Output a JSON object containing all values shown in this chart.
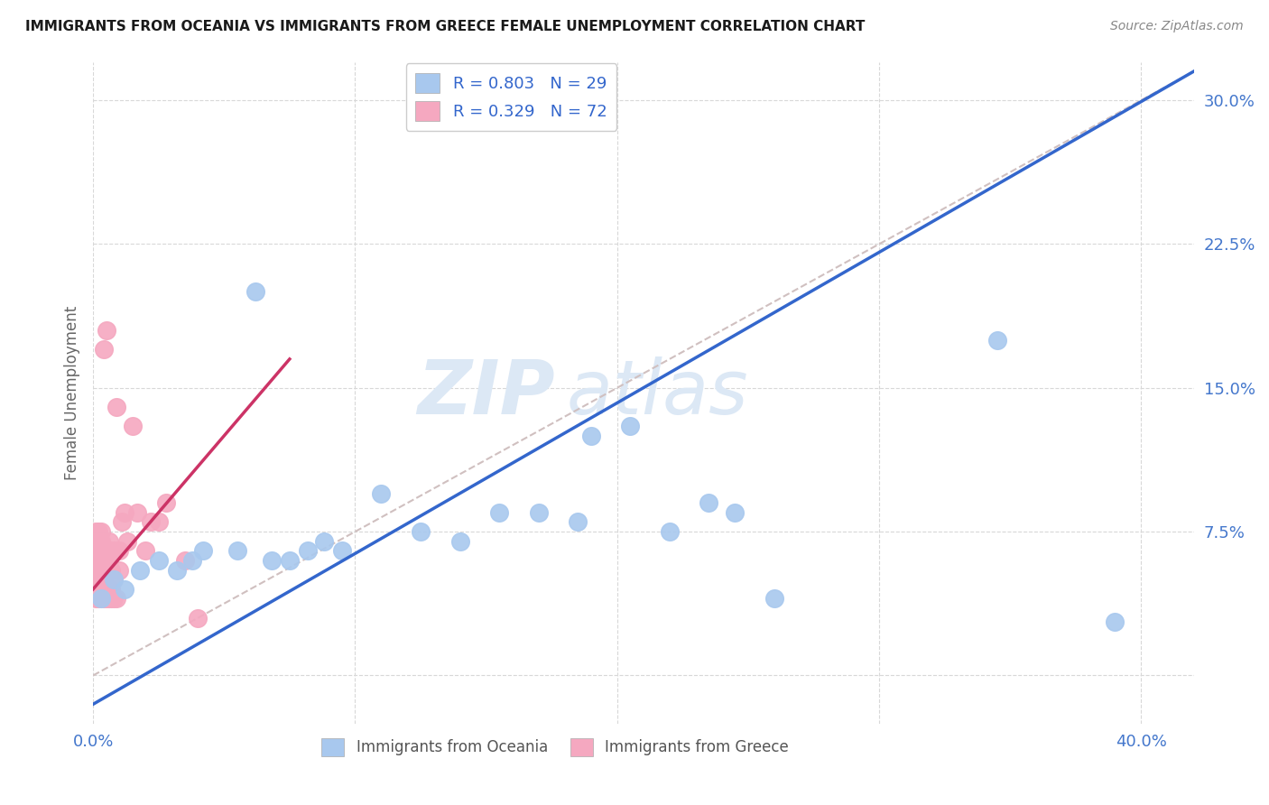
{
  "title": "IMMIGRANTS FROM OCEANIA VS IMMIGRANTS FROM GREECE FEMALE UNEMPLOYMENT CORRELATION CHART",
  "source": "Source: ZipAtlas.com",
  "ylabel": "Female Unemployment",
  "xlim": [
    0.0,
    0.42
  ],
  "ylim": [
    -0.025,
    0.32
  ],
  "xticks": [
    0.0,
    0.1,
    0.2,
    0.3,
    0.4
  ],
  "yticks": [
    0.0,
    0.075,
    0.15,
    0.225,
    0.3
  ],
  "xtick_labels": [
    "0.0%",
    "",
    "",
    "",
    "40.0%"
  ],
  "ytick_labels": [
    "",
    "7.5%",
    "15.0%",
    "22.5%",
    "30.0%"
  ],
  "background_color": "#ffffff",
  "grid_color": "#d8d8d8",
  "oceania_color": "#a8c8ee",
  "greece_color": "#f5a8c0",
  "oceania_line_color": "#3366cc",
  "greece_line_color": "#cc3366",
  "dashed_line_color": "#d0c0c0",
  "watermark_color": "#dce8f5",
  "legend_R_oceania": "R = 0.803",
  "legend_N_oceania": "N = 29",
  "legend_R_greece": "R = 0.329",
  "legend_N_greece": "N = 72",
  "oceania_scatter_x": [
    0.003,
    0.008,
    0.012,
    0.018,
    0.025,
    0.032,
    0.038,
    0.042,
    0.055,
    0.062,
    0.068,
    0.075,
    0.082,
    0.088,
    0.095,
    0.11,
    0.125,
    0.14,
    0.155,
    0.17,
    0.185,
    0.19,
    0.205,
    0.22,
    0.235,
    0.245,
    0.26,
    0.345,
    0.39
  ],
  "oceania_scatter_y": [
    0.04,
    0.05,
    0.045,
    0.055,
    0.06,
    0.055,
    0.06,
    0.065,
    0.065,
    0.2,
    0.06,
    0.06,
    0.065,
    0.07,
    0.065,
    0.095,
    0.075,
    0.07,
    0.085,
    0.085,
    0.08,
    0.125,
    0.13,
    0.075,
    0.09,
    0.085,
    0.04,
    0.175,
    0.028
  ],
  "greece_scatter_x": [
    0.0,
    0.0,
    0.0,
    0.0,
    0.0,
    0.0,
    0.0,
    0.0,
    0.001,
    0.001,
    0.001,
    0.001,
    0.001,
    0.001,
    0.001,
    0.001,
    0.001,
    0.001,
    0.002,
    0.002,
    0.002,
    0.002,
    0.002,
    0.002,
    0.002,
    0.002,
    0.003,
    0.003,
    0.003,
    0.003,
    0.003,
    0.003,
    0.003,
    0.003,
    0.004,
    0.004,
    0.004,
    0.004,
    0.004,
    0.004,
    0.005,
    0.005,
    0.005,
    0.005,
    0.005,
    0.006,
    0.006,
    0.006,
    0.006,
    0.006,
    0.007,
    0.007,
    0.007,
    0.007,
    0.008,
    0.008,
    0.008,
    0.009,
    0.009,
    0.01,
    0.01,
    0.011,
    0.012,
    0.013,
    0.015,
    0.017,
    0.02,
    0.022,
    0.025,
    0.028,
    0.035,
    0.04
  ],
  "greece_scatter_y": [
    0.055,
    0.06,
    0.06,
    0.062,
    0.065,
    0.065,
    0.07,
    0.07,
    0.04,
    0.045,
    0.05,
    0.055,
    0.06,
    0.062,
    0.065,
    0.07,
    0.07,
    0.075,
    0.04,
    0.045,
    0.05,
    0.055,
    0.06,
    0.065,
    0.07,
    0.075,
    0.04,
    0.045,
    0.05,
    0.055,
    0.06,
    0.065,
    0.07,
    0.075,
    0.04,
    0.045,
    0.055,
    0.06,
    0.065,
    0.17,
    0.04,
    0.045,
    0.055,
    0.06,
    0.18,
    0.04,
    0.055,
    0.06,
    0.065,
    0.07,
    0.04,
    0.045,
    0.055,
    0.065,
    0.04,
    0.05,
    0.065,
    0.04,
    0.14,
    0.055,
    0.065,
    0.08,
    0.085,
    0.07,
    0.13,
    0.085,
    0.065,
    0.08,
    0.08,
    0.09,
    0.06,
    0.03
  ],
  "oceania_line_x0": 0.0,
  "oceania_line_y0": -0.015,
  "oceania_line_x1": 0.42,
  "oceania_line_y1": 0.315,
  "greece_line_x0": 0.0,
  "greece_line_y0": 0.045,
  "greece_line_x1": 0.075,
  "greece_line_y1": 0.165,
  "dashed_line_x0": 0.0,
  "dashed_line_y0": 0.0,
  "dashed_line_x1": 0.42,
  "dashed_line_y1": 0.315
}
